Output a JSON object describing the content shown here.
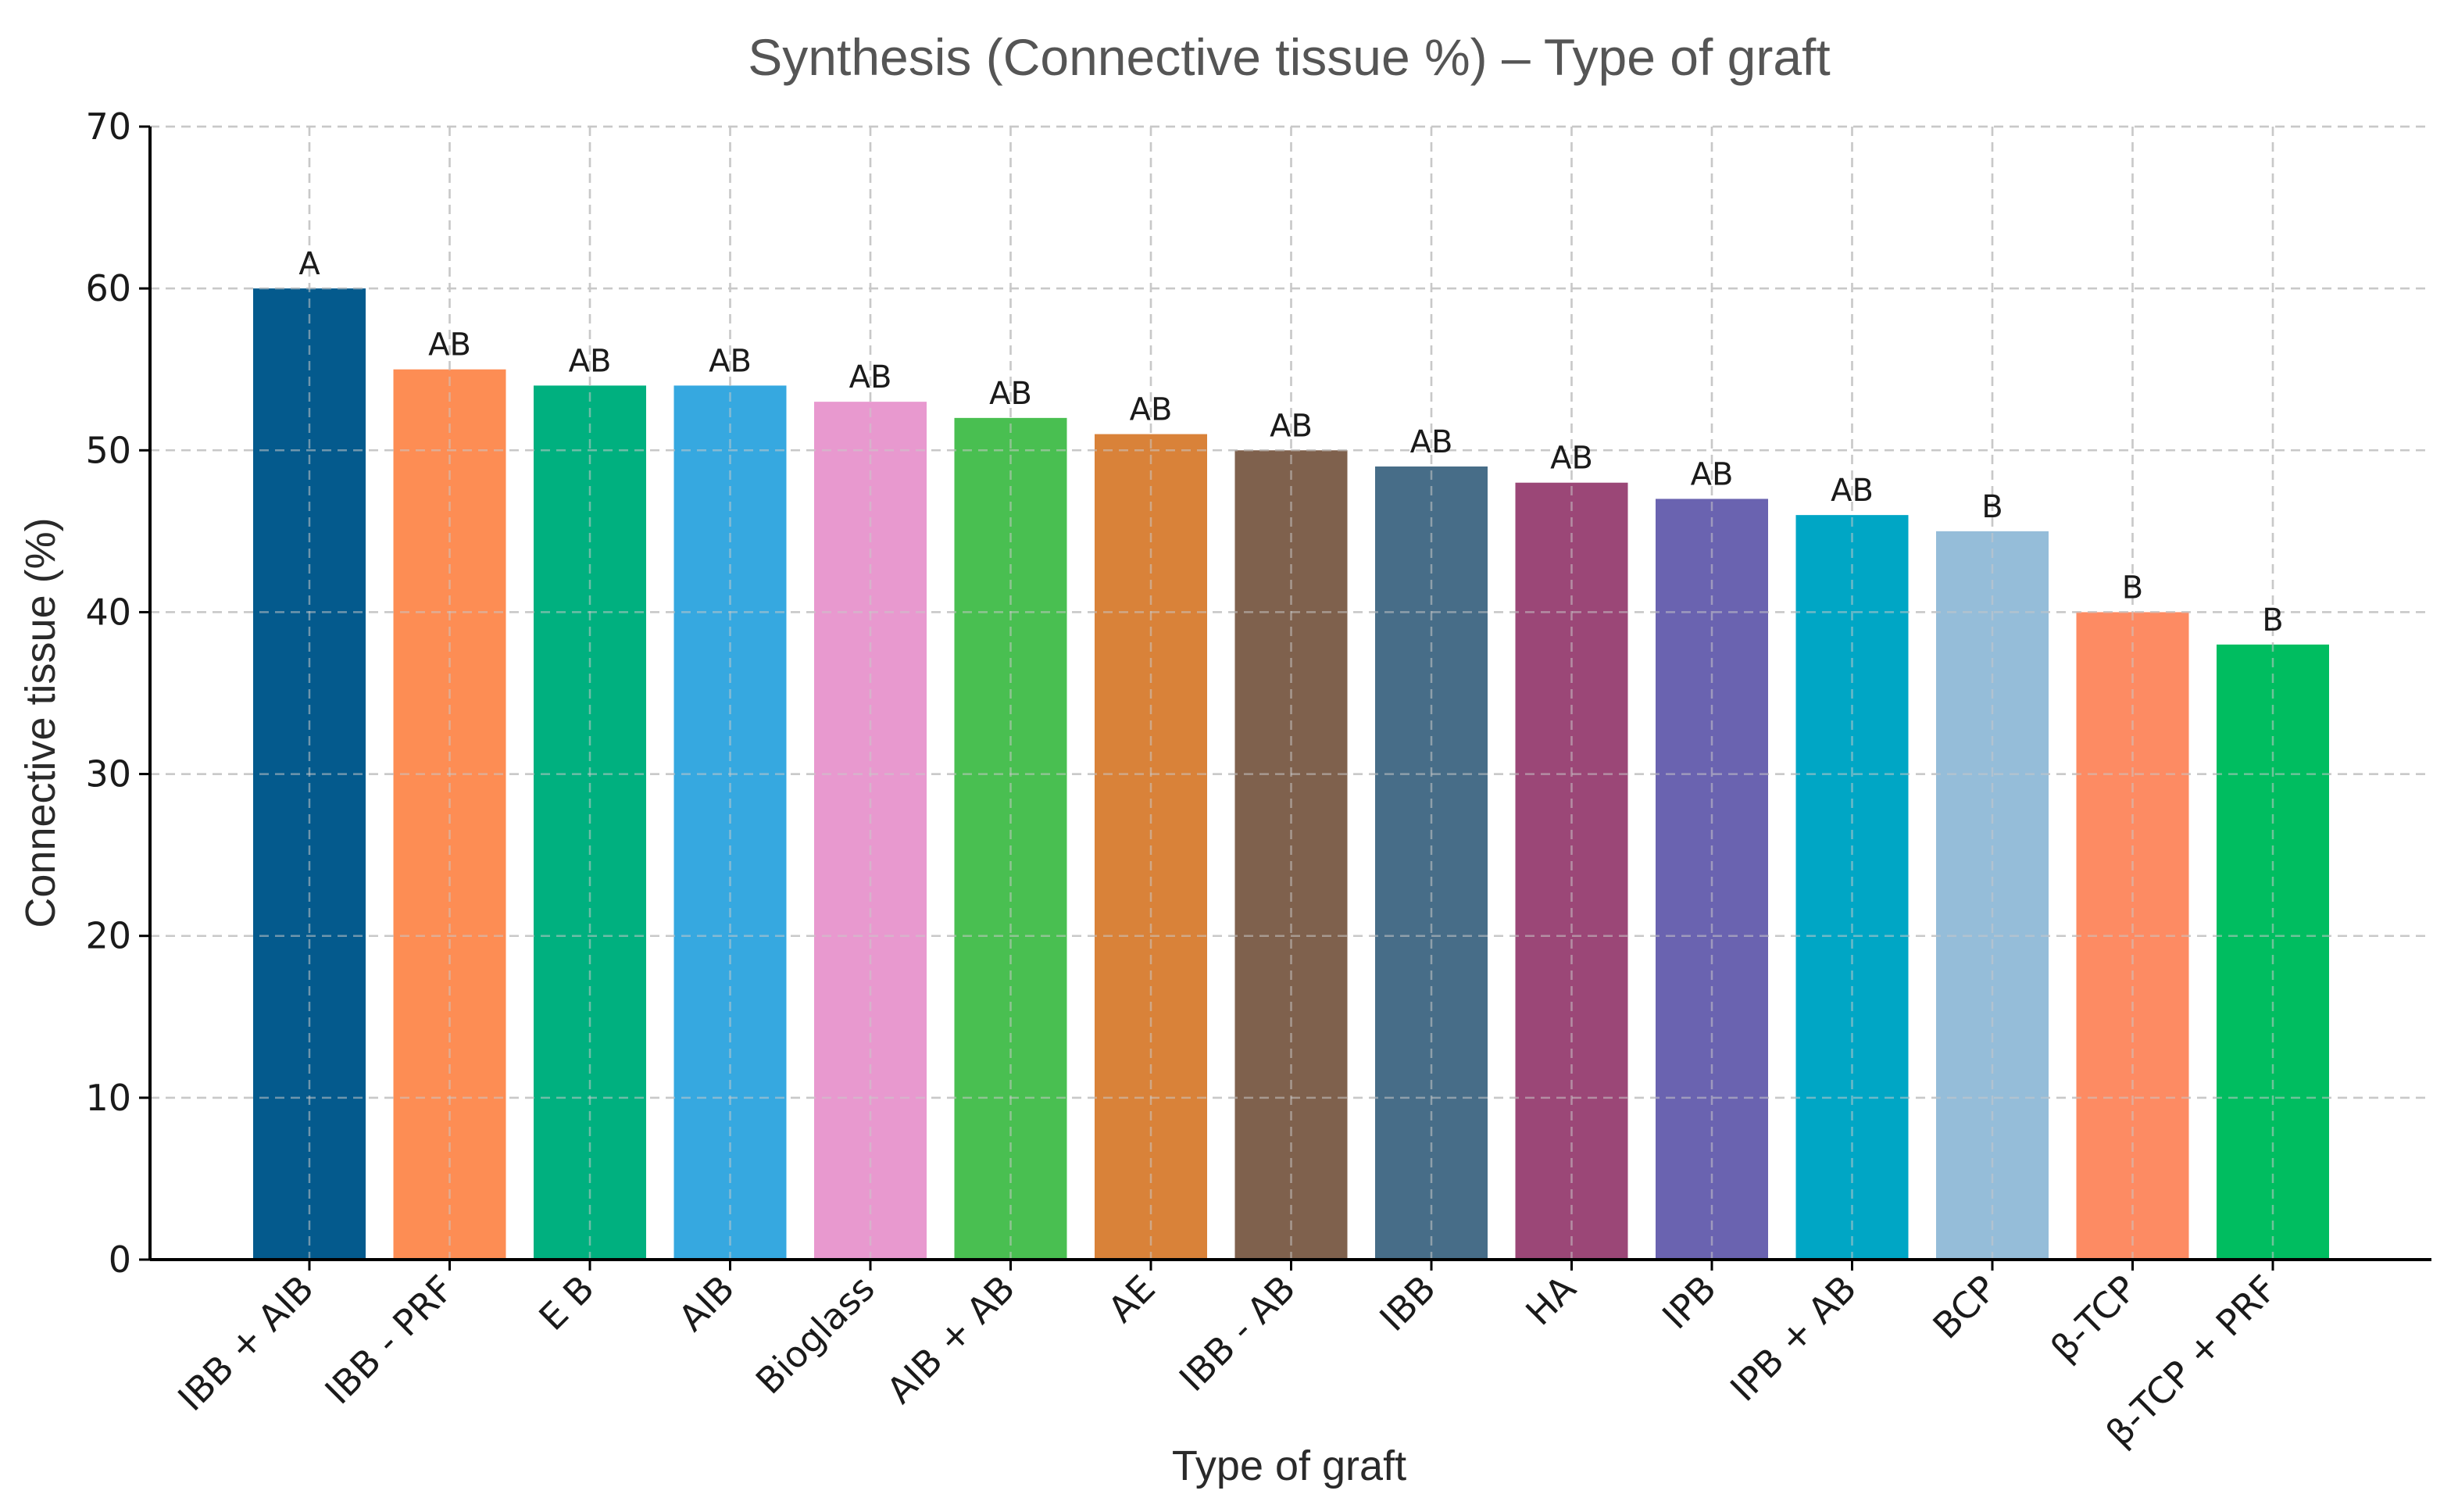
{
  "chart_data": {
    "type": "bar",
    "title": "Synthesis (Connective tissue %) – Type of graft",
    "xlabel": "Type of graft",
    "ylabel": "Connective tissue (%)",
    "ylim": [
      0,
      70
    ],
    "yticks": [
      0,
      10,
      20,
      30,
      40,
      50,
      60,
      70
    ],
    "grid": true,
    "categories": [
      "IBB + AIB",
      "IBB - PRF",
      "E B",
      "AIB",
      "Bioglass",
      "AIB + AB",
      "AE",
      "IBB - AB",
      "IBB",
      "HA",
      "IPB",
      "IPB + AB",
      "BCP",
      "β-TCP",
      "β-TCP + PRF"
    ],
    "values": [
      60,
      55,
      54,
      54,
      53,
      52,
      51,
      50,
      49,
      48,
      47,
      46,
      45,
      40,
      38
    ],
    "group_labels": [
      "A",
      "AB",
      "AB",
      "AB",
      "AB",
      "AB",
      "AB",
      "AB",
      "AB",
      "AB",
      "AB",
      "AB",
      "B",
      "B",
      "B"
    ],
    "colors": [
      "#045a8d",
      "#fd8d54",
      "#00b07f",
      "#36a8e0",
      "#e899cf",
      "#49bf51",
      "#d98239",
      "#7f614d",
      "#476d88",
      "#9b4777",
      "#6a63b0",
      "#00a6c5",
      "#95bdd9",
      "#fd8b63",
      "#00bd60"
    ]
  }
}
